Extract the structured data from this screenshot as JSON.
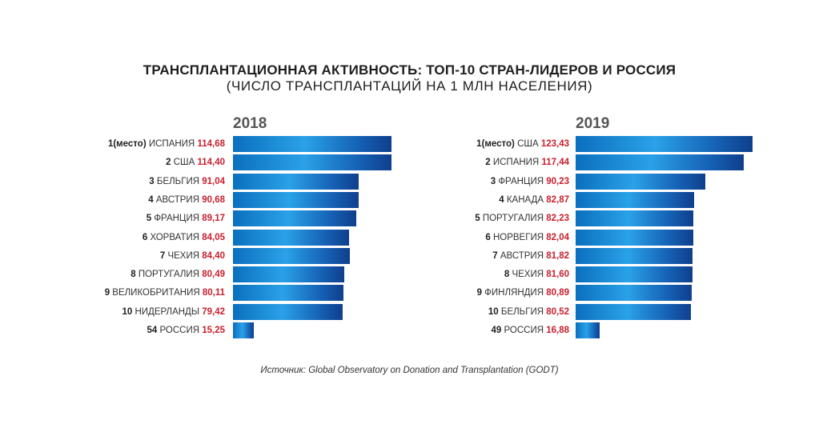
{
  "title": "ТРАНСПЛАНТАЦИОННАЯ АКТИВНОСТЬ: ТОП-10 СТРАН-ЛИДЕРОВ И РОССИЯ",
  "subtitle": "(ЧИСЛО ТРАНСПЛАНТАЦИЙ НА 1 МЛН НАСЕЛЕНИЯ)",
  "source": "Источник: Global Observatory on Donation and Transplantation (GODT)",
  "chart_data": [
    {
      "type": "bar",
      "orientation": "horizontal",
      "title": "2018",
      "bar_color": "#1e8fdc",
      "value_color": "#c8202e",
      "rows": [
        {
          "rank": "1(место)",
          "country": "ИСПАНИЯ",
          "value_label": "114,68",
          "value": 114.68
        },
        {
          "rank": "2",
          "country": "США",
          "value_label": "114,40",
          "value": 114.4
        },
        {
          "rank": "3",
          "country": "БЕЛЬГИЯ",
          "value_label": "91,04",
          "value": 91.04
        },
        {
          "rank": "4",
          "country": "АВСТРИЯ",
          "value_label": "90,68",
          "value": 90.68
        },
        {
          "rank": "5",
          "country": "ФРАНЦИЯ",
          "value_label": "89,17",
          "value": 89.17
        },
        {
          "rank": "6",
          "country": "ХОРВАТИЯ",
          "value_label": "84,05",
          "value": 84.05
        },
        {
          "rank": "7",
          "country": "ЧЕХИЯ",
          "value_label": "84,40",
          "value": 84.4
        },
        {
          "rank": "8",
          "country": "ПОРТУГАЛИЯ",
          "value_label": "80,49",
          "value": 80.49
        },
        {
          "rank": "9",
          "country": "ВЕЛИКОБРИТАНИЯ",
          "value_label": "80,11",
          "value": 80.11
        },
        {
          "rank": "10",
          "country": "НИДЕРЛАНДЫ",
          "value_label": "79,42",
          "value": 79.42
        },
        {
          "rank": "54",
          "country": "РОССИЯ",
          "value_label": "15,25",
          "value": 15.25
        }
      ]
    },
    {
      "type": "bar",
      "orientation": "horizontal",
      "title": "2019",
      "bar_color": "#1e8fdc",
      "value_color": "#c8202e",
      "rows": [
        {
          "rank": "1(место)",
          "country": "США",
          "value_label": "123,43",
          "value": 123.43
        },
        {
          "rank": "2",
          "country": "ИСПАНИЯ",
          "value_label": "117,44",
          "value": 117.44
        },
        {
          "rank": "3",
          "country": "ФРАНЦИЯ",
          "value_label": "90,23",
          "value": 90.23
        },
        {
          "rank": "4",
          "country": "КАНАДА",
          "value_label": "82,87",
          "value": 82.87
        },
        {
          "rank": "5",
          "country": "ПОРТУГАЛИЯ",
          "value_label": "82,23",
          "value": 82.23
        },
        {
          "rank": "6",
          "country": "НОРВЕГИЯ",
          "value_label": "82,04",
          "value": 82.04
        },
        {
          "rank": "7",
          "country": "АВСТРИЯ",
          "value_label": "81,82",
          "value": 81.82
        },
        {
          "rank": "8",
          "country": "ЧЕХИЯ",
          "value_label": "81,60",
          "value": 81.6
        },
        {
          "rank": "9",
          "country": "ФИНЛЯНДИЯ",
          "value_label": "80,89",
          "value": 80.89
        },
        {
          "rank": "10",
          "country": "БЕЛЬГИЯ",
          "value_label": "80,52",
          "value": 80.52
        },
        {
          "rank": "49",
          "country": "РОССИЯ",
          "value_label": "16,88",
          "value": 16.88
        }
      ]
    }
  ]
}
